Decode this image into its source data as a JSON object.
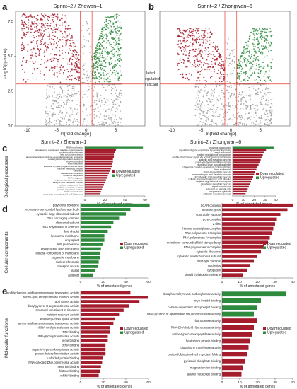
{
  "colors": {
    "up": "#2e8b3e",
    "down": "#a51d2d",
    "ns": "#9e9e9e",
    "redline": "#e53935"
  },
  "chart_data": [
    {
      "type": "scatter",
      "panel": "a",
      "title": "Sprint‒2 / Zhewan‒1",
      "xlabel": "ln(fold change)",
      "ylabel": "−log10(q−value)",
      "xlim": [
        -12,
        10
      ],
      "ylim": [
        0,
        8.2
      ],
      "xticks": [
        "-10",
        "-5",
        "0",
        "5"
      ],
      "yticks": [
        "0.0",
        "2.5",
        "5.0",
        "7.5"
      ],
      "thresholds": {
        "x": [
          -1,
          1
        ],
        "y": 3.0
      },
      "legend": [
        "Upregulated",
        "Downregulated",
        "Not significant"
      ],
      "clouds": [
        {
          "series": "ns",
          "xmin": -7,
          "xmax": 6,
          "ymax": 8,
          "n": 650
        },
        {
          "series": "down",
          "xmin": -11,
          "xmax": -1,
          "ymax": 8,
          "n": 520
        },
        {
          "series": "up",
          "xmin": 1,
          "xmax": 6,
          "ymax": 8,
          "n": 420
        }
      ]
    },
    {
      "type": "scatter",
      "panel": "b",
      "title": "Sprint‒2 / Zhongwan‒6",
      "xlabel": "ln(fold change)",
      "ylabel": "",
      "xlim": [
        -12,
        10
      ],
      "ylim": [
        0,
        8.2
      ],
      "xticks": [
        "-10",
        "-5",
        "0",
        "5"
      ],
      "yticks": [],
      "thresholds": {
        "x": [
          -1,
          1
        ],
        "y": 3.0
      },
      "clouds": [
        {
          "series": "ns",
          "xmin": -6,
          "xmax": 7,
          "ymax": 7,
          "n": 650
        },
        {
          "series": "down",
          "xmin": -9,
          "xmax": -1,
          "ymax": 7,
          "n": 380
        },
        {
          "series": "up",
          "xmin": 1,
          "xmax": 7,
          "ymax": 7,
          "n": 300
        }
      ]
    },
    {
      "type": "bar",
      "panel": "c-left",
      "group": "Biological processes",
      "title": "Sprint‒2 / Zhewan‒1",
      "xlabel": "% of annotated genes",
      "xmax": 60,
      "xticks": [
        "0",
        "20",
        "40",
        "60"
      ],
      "categories": [
        "tRNA modification",
        "regulation of response to reactive oxygen species",
        "regulation of lipid storage",
        "fatty acid beta-oxidation",
        "jasmonic acid and ethylene-dependent systemic resistance",
        "deadenylation-dependent decapping",
        "RNA modification",
        "seed maturation",
        "induction of plant programmed cell death",
        "sucrose metabolic process",
        "translation",
        "translational elongation",
        "ribosome biogenesis",
        "DNA integration",
        "response to water deprivation",
        "salicylic acid metabolic process",
        "cellular response to heat",
        "oxidation-reduction process",
        "protein import into nucleus",
        "DNA recombination",
        "plant-type secondary cell wall biogenesis"
      ],
      "series": [
        {
          "name": "Downregulated",
          "values": [
            32,
            31,
            30,
            29,
            29,
            28,
            28,
            27,
            27,
            26,
            25,
            24,
            23,
            22,
            21,
            20,
            19,
            18,
            17,
            16,
            15
          ]
        },
        {
          "name": "Upregulated",
          "values": [
            58,
            0,
            0,
            0,
            0,
            0,
            0,
            0,
            0,
            0,
            0,
            0,
            0,
            0,
            0,
            0,
            0,
            0,
            0,
            0,
            0
          ]
        }
      ]
    },
    {
      "type": "bar",
      "panel": "c-right",
      "group": "Biological processes",
      "title": "Sprint‒2 / Zhongwan‒6",
      "xlabel": "% of annotated genes",
      "xmax": 40,
      "xticks": [
        "0",
        "10",
        "20",
        "30",
        "40"
      ],
      "categories": [
        "response to wounding",
        "regulation of gene expression by genetic imprinting",
        "seed maturation",
        "positive regulation of transcription",
        "double-strand break repair via homologous recombination",
        "salicylic acid metabolic process",
        "plant-type hypersensitive response",
        "ribosomal large subunit assembly",
        "chaperone cofactor-dependent protein refolding",
        "heat acclimation",
        "starch biosynthetic process",
        "monocarboxylic acid catabolic process",
        "tricarboxylic acid metabolic process",
        "cellular response to abscisic acid stimulus",
        "negative regulation of transcription",
        "glutathione metabolic process",
        "signal transduction",
        "response to salicylic acid",
        "response to cytokinin",
        "oxidation-reduction process"
      ],
      "series": [
        {
          "name": "Downregulated",
          "values": [
            34,
            31,
            29,
            28,
            27,
            26,
            25,
            24,
            23,
            22,
            21,
            20,
            19,
            18,
            17,
            16,
            15,
            14,
            13,
            12
          ]
        },
        {
          "name": "Upregulated",
          "values": [
            38,
            0,
            0,
            0,
            0,
            0,
            0,
            0,
            0,
            0,
            0,
            0,
            0,
            0,
            0,
            0,
            0,
            0,
            0,
            0
          ]
        }
      ]
    },
    {
      "type": "bar",
      "panel": "d-left",
      "group": "Cellular components",
      "xlabel": "% of annotated genes",
      "xmax": 60,
      "xticks": [
        "0",
        "20",
        "40",
        "60"
      ],
      "categories": [
        "polysomal ribosome",
        "monolayer-surrounded lipid storage body",
        "cytosolic large ribosomal subunit",
        "DNA packaging complex",
        "ribosomal subunit",
        "RNA polymerase III complex",
        "lipid droplet",
        "lysosomal membrane",
        "amyloplast",
        "90S preribosome",
        "endoplasmic reticulum lumen",
        "integral component of membrane",
        "organelle membrane",
        "nuclear chromatin",
        "transport vesicle",
        "plastid",
        "apoplast"
      ],
      "series": [
        {
          "name": "Downregulated",
          "values": [
            0,
            0,
            0,
            0,
            0,
            0,
            0,
            0,
            0,
            0,
            0,
            0,
            0,
            0,
            0,
            0,
            0
          ]
        },
        {
          "name": "Upregulated",
          "values": [
            61,
            44,
            40,
            34,
            29,
            27,
            24,
            21,
            21,
            20,
            18,
            17,
            17,
            16,
            15,
            13,
            11
          ]
        }
      ]
    },
    {
      "type": "bar",
      "panel": "d-right",
      "group": "Cellular components",
      "xlabel": "% of annotated genes",
      "xmax": 40,
      "xticks": [
        "0",
        "10",
        "20",
        "30",
        "40"
      ],
      "categories": [
        "SCAR complex",
        "aleurone grain",
        "contractile vacuole",
        "pore complex",
        "Z disc",
        "histone deacetylase complex",
        "RNA polymerase I complex",
        "RNA polymerase IV complex",
        "monolayer-surrounded lipid storage body",
        "RNA polymerase V complex",
        "cytosolic ribosome",
        "cytosolic small ribosomal subunit",
        "plant-type vacuole",
        "nucleolus",
        "cytoplasm",
        "plastid thylakoid membrane"
      ],
      "series": [
        {
          "name": "Downregulated",
          "values": [
            40,
            37,
            33,
            31,
            30,
            29,
            28,
            27,
            26,
            24,
            22,
            20,
            18,
            16,
            14,
            12
          ]
        },
        {
          "name": "Upregulated",
          "values": [
            0,
            0,
            0,
            0,
            0,
            0,
            0,
            0,
            0,
            0,
            0,
            0,
            0,
            0,
            0,
            0
          ]
        }
      ]
    },
    {
      "type": "bar",
      "panel": "e-left",
      "group": "Molecular functions",
      "xlabel": "% of annotated genes",
      "xmax": 60,
      "xticks": [
        "0",
        "20",
        "40",
        "60"
      ],
      "categories": [
        "modified amino acid transmembrane transporter activity",
        "serine-type endopeptidase inhibitor activity",
        "acyl carrier activity",
        "diacylglycerol O-acyltransferase activity",
        "structural constituent of ribosome",
        "nutrient reservoir activity",
        "aminoacyl-tRNA ligase activity",
        "amino acid transmembrane transporter activity",
        "rRNA methyltransferase activity",
        "rRNA binding",
        "UDP-glycosyltransferase activity",
        "heme binding",
        "tRNA binding",
        "aspartic-type endopeptidase activity",
        "protein heterodimerization activity",
        "unfolded protein binding",
        "RNA-directed DNA polymerase activity",
        "metal ion binding",
        "histone binding",
        "mRNA binding"
      ],
      "series": [
        {
          "name": "Downregulated",
          "values": [
            44,
            60,
            52,
            43,
            38,
            34,
            30,
            29,
            26,
            26,
            24,
            24,
            22,
            22,
            22,
            20,
            19,
            18,
            17,
            16
          ]
        },
        {
          "name": "Upregulated",
          "values": [
            0,
            0,
            0,
            0,
            0,
            0,
            0,
            0,
            0,
            0,
            0,
            0,
            0,
            0,
            0,
            0,
            0,
            0,
            0,
            0
          ]
        }
      ]
    },
    {
      "type": "bar",
      "panel": "e-right",
      "group": "Molecular functions",
      "xlabel": "% of annotated genes",
      "xmax": 40,
      "xticks": [
        "0",
        "10",
        "20",
        "30",
        "40"
      ],
      "categories": [
        "phosphoenolpyruvate carboxykinase activity",
        "myo-inositol binding",
        "calcium-dependent phospholipid binding",
        "DNA (apurinic or apyrimidinic site) endonuclease activity",
        "ribonuclease activity",
        "RNA-DNA hybrid ribonuclease activity",
        "serine-type carboxypeptidase activity",
        "heat shock protein binding",
        "glutathione transferase activity",
        "protein folding involved in protein folding",
        "pyridoxal phosphate binding",
        "magnesium ion binding",
        "adenyl nucleotide binding"
      ],
      "series": [
        {
          "name": "Downregulated",
          "values": [
            0,
            0,
            0,
            0,
            20,
            18,
            17,
            16,
            15,
            14,
            13,
            12,
            11
          ]
        },
        {
          "name": "Upregulated",
          "values": [
            36,
            22,
            20,
            18,
            0,
            0,
            0,
            0,
            0,
            0,
            0,
            0,
            0
          ]
        }
      ]
    }
  ],
  "panel_letters": [
    "a",
    "b",
    "c",
    "d",
    "e"
  ],
  "group_labels": [
    "Biological processes",
    "Cellular components",
    "Molecular functions"
  ]
}
